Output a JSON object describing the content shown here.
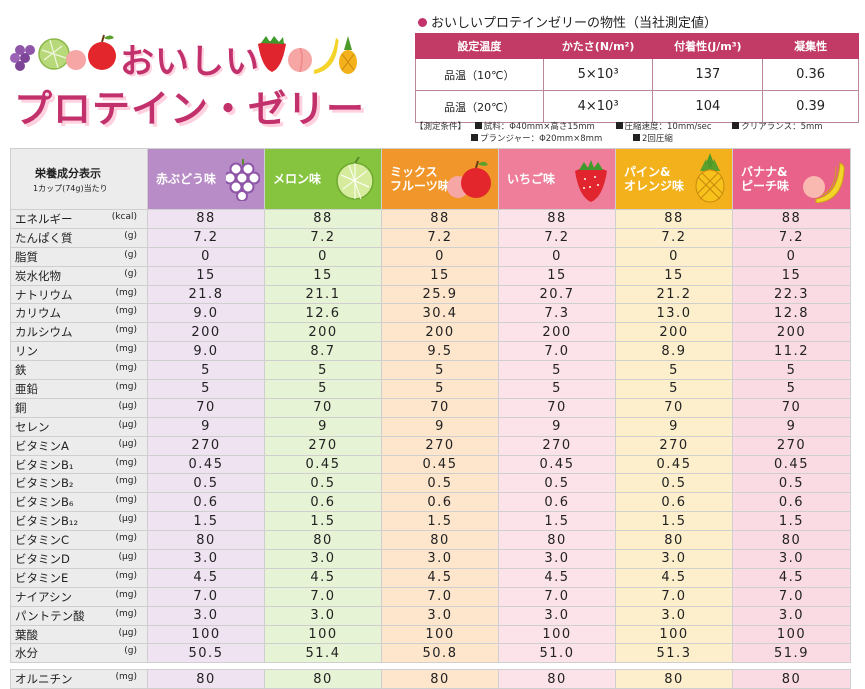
{
  "title": {
    "line1": "おいしい",
    "line2": "プロテイン・ゼリー"
  },
  "physical": {
    "heading": "おいしいプロテインゼリーの物性（当社測定値）",
    "headers": [
      "設定温度",
      "かたさ(N/m²)",
      "付着性(J/m³)",
      "凝集性"
    ],
    "rows": [
      {
        "temp": "品温（10℃）",
        "hardness": "5×10³",
        "adhesion": "137",
        "cohesion": "0.36"
      },
      {
        "temp": "品温（20℃）",
        "hardness": "4×10³",
        "adhesion": "104",
        "cohesion": "0.39"
      }
    ],
    "conditions": {
      "label": "【測定条件】",
      "sample": "試料：Φ40mm×高さ15mm",
      "speed": "圧縮速度：10mm/sec",
      "clearance": "クリアランス：5mm",
      "plunger": "プランジャー：Φ20mm×8mm",
      "compress": "2回圧縮"
    }
  },
  "nutrition": {
    "header_title": "栄養成分表示",
    "header_sub": "1カップ(74g)当たり",
    "flavors": [
      {
        "name": "赤ぶどう味",
        "icon": "grape-icon",
        "color": "#b88cc6"
      },
      {
        "name": "メロン味",
        "icon": "melon-icon",
        "color": "#86c440"
      },
      {
        "name": "ミックス\nフルーツ味",
        "icon": "apple-icon",
        "color": "#f0962a"
      },
      {
        "name": "いちご味",
        "icon": "strawberry-icon",
        "color": "#ee7e9a"
      },
      {
        "name": "パイン&\nオレンジ味",
        "icon": "pineapple-icon",
        "color": "#f3b21c"
      },
      {
        "name": "バナナ&\nピーチ味",
        "icon": "banana-icon",
        "color": "#e9628a"
      }
    ],
    "rows": [
      {
        "label": "エネルギー",
        "unit": "(kcal)",
        "values": [
          "88",
          "88",
          "88",
          "88",
          "88",
          "88"
        ]
      },
      {
        "label": "たんぱく質",
        "unit": "(g)",
        "values": [
          "7.2",
          "7.2",
          "7.2",
          "7.2",
          "7.2",
          "7.2"
        ]
      },
      {
        "label": "脂質",
        "unit": "(g)",
        "values": [
          "0",
          "0",
          "0",
          "0",
          "0",
          "0"
        ]
      },
      {
        "label": "炭水化物",
        "unit": "(g)",
        "values": [
          "15",
          "15",
          "15",
          "15",
          "15",
          "15"
        ]
      },
      {
        "label": "ナトリウム",
        "unit": "(mg)",
        "values": [
          "21.8",
          "21.1",
          "25.9",
          "20.7",
          "21.2",
          "22.3"
        ]
      },
      {
        "label": "カリウム",
        "unit": "(mg)",
        "values": [
          "9.0",
          "12.6",
          "30.4",
          "7.3",
          "13.0",
          "12.8"
        ]
      },
      {
        "label": "カルシウム",
        "unit": "(mg)",
        "values": [
          "200",
          "200",
          "200",
          "200",
          "200",
          "200"
        ]
      },
      {
        "label": "リン",
        "unit": "(mg)",
        "values": [
          "9.0",
          "8.7",
          "9.5",
          "7.0",
          "8.9",
          "11.2"
        ]
      },
      {
        "label": "鉄",
        "unit": "(mg)",
        "values": [
          "5",
          "5",
          "5",
          "5",
          "5",
          "5"
        ]
      },
      {
        "label": "亜鉛",
        "unit": "(mg)",
        "values": [
          "5",
          "5",
          "5",
          "5",
          "5",
          "5"
        ]
      },
      {
        "label": "銅",
        "unit": "(μg)",
        "values": [
          "70",
          "70",
          "70",
          "70",
          "70",
          "70"
        ]
      },
      {
        "label": "セレン",
        "unit": "(μg)",
        "values": [
          "9",
          "9",
          "9",
          "9",
          "9",
          "9"
        ]
      },
      {
        "label": "ビタミンA",
        "unit": "(μg)",
        "values": [
          "270",
          "270",
          "270",
          "270",
          "270",
          "270"
        ]
      },
      {
        "label": "ビタミンB₁",
        "unit": "(mg)",
        "values": [
          "0.45",
          "0.45",
          "0.45",
          "0.45",
          "0.45",
          "0.45"
        ]
      },
      {
        "label": "ビタミンB₂",
        "unit": "(mg)",
        "values": [
          "0.5",
          "0.5",
          "0.5",
          "0.5",
          "0.5",
          "0.5"
        ]
      },
      {
        "label": "ビタミンB₆",
        "unit": "(mg)",
        "values": [
          "0.6",
          "0.6",
          "0.6",
          "0.6",
          "0.6",
          "0.6"
        ]
      },
      {
        "label": "ビタミンB₁₂",
        "unit": "(μg)",
        "values": [
          "1.5",
          "1.5",
          "1.5",
          "1.5",
          "1.5",
          "1.5"
        ]
      },
      {
        "label": "ビタミンC",
        "unit": "(mg)",
        "values": [
          "80",
          "80",
          "80",
          "80",
          "80",
          "80"
        ]
      },
      {
        "label": "ビタミンD",
        "unit": "(μg)",
        "values": [
          "3.0",
          "3.0",
          "3.0",
          "3.0",
          "3.0",
          "3.0"
        ]
      },
      {
        "label": "ビタミンE",
        "unit": "(mg)",
        "values": [
          "4.5",
          "4.5",
          "4.5",
          "4.5",
          "4.5",
          "4.5"
        ]
      },
      {
        "label": "ナイアシン",
        "unit": "(mg)",
        "values": [
          "7.0",
          "7.0",
          "7.0",
          "7.0",
          "7.0",
          "7.0"
        ]
      },
      {
        "label": "パントテン酸",
        "unit": "(mg)",
        "values": [
          "3.0",
          "3.0",
          "3.0",
          "3.0",
          "3.0",
          "3.0"
        ]
      },
      {
        "label": "葉酸",
        "unit": "(μg)",
        "values": [
          "100",
          "100",
          "100",
          "100",
          "100",
          "100"
        ]
      },
      {
        "label": "水分",
        "unit": "(g)",
        "values": [
          "50.5",
          "51.4",
          "50.8",
          "51.0",
          "51.3",
          "51.9"
        ]
      }
    ],
    "extra_row": {
      "label": "オルニチン",
      "unit": "(mg)",
      "values": [
        "80",
        "80",
        "80",
        "80",
        "80",
        "80"
      ]
    }
  }
}
